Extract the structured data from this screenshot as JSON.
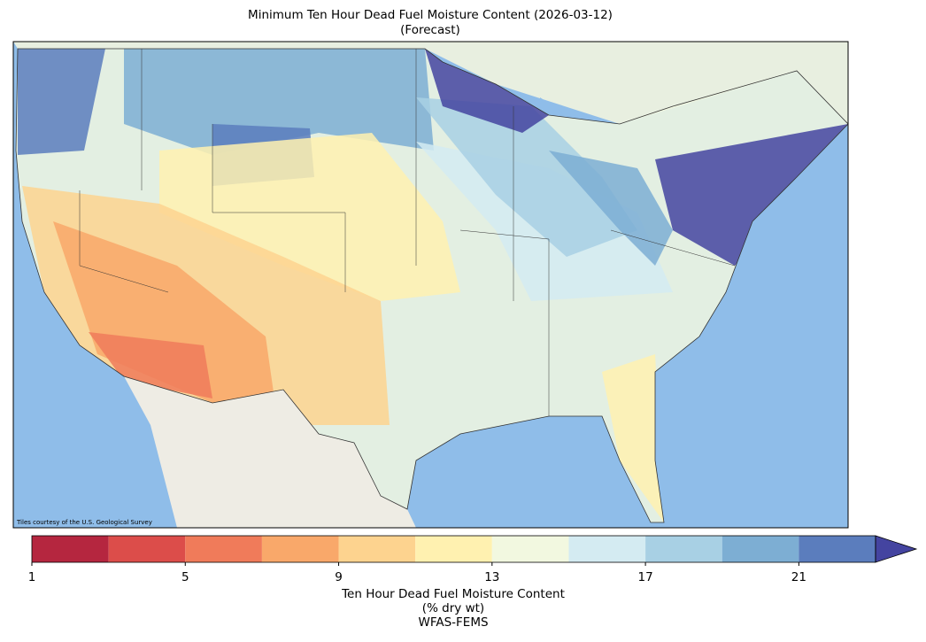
{
  "title": [
    "Minimum Ten Hour Dead Fuel Moisture Content (2026-03-12)",
    "(Forecast)"
  ],
  "attribution": "Tiles courtesy of the U.S. Geological Survey",
  "colorbar": {
    "bounds": [
      1,
      3,
      5,
      7,
      9,
      11,
      13,
      15,
      17,
      19,
      21,
      23
    ],
    "colors": [
      "#b5263f",
      "#dc4d4a",
      "#f07b5a",
      "#f9a86a",
      "#fdd38f",
      "#fff1b0",
      "#f2f8e0",
      "#d4ebf2",
      "#a8d0e4",
      "#7daed3",
      "#5b7dbd"
    ],
    "extend_color": "#4444a0",
    "ticks": [
      1,
      5,
      9,
      13,
      17,
      21
    ],
    "label": [
      "Ten Hour Dead Fuel Moisture Content",
      "(% dry wt)",
      "WFAS-FEMS"
    ]
  }
}
